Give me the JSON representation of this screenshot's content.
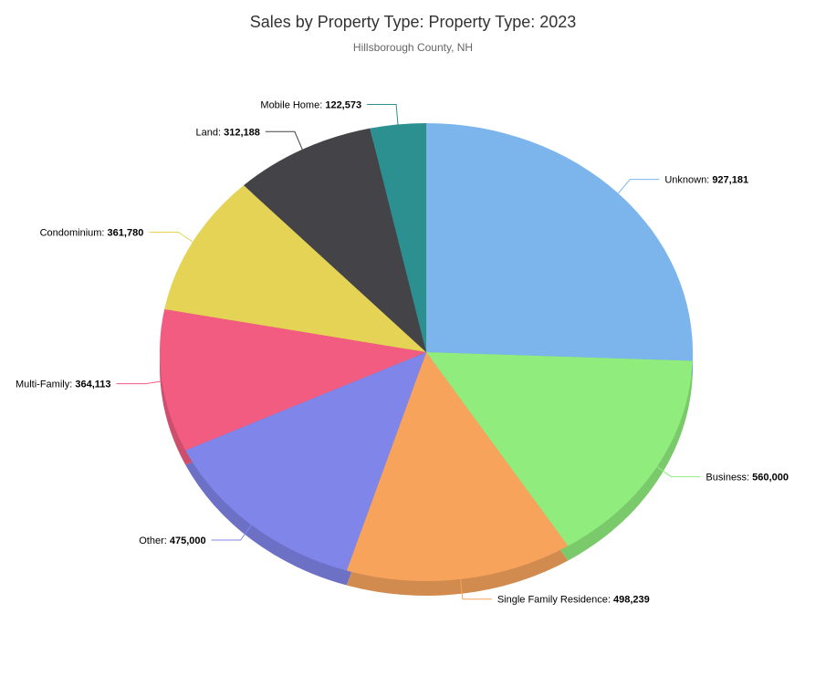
{
  "chart_data": {
    "type": "pie",
    "title": "Sales by Property Type: Property Type: 2023",
    "subtitle": "Hillsborough County, NH",
    "slices": [
      {
        "name": "Unknown",
        "value": 927181,
        "value_label": "927,181",
        "color": "#7cb5ec"
      },
      {
        "name": "Business",
        "value": 560000,
        "value_label": "560,000",
        "color": "#90ed7d"
      },
      {
        "name": "Single Family Residence",
        "value": 498239,
        "value_label": "498,239",
        "color": "#f7a35c"
      },
      {
        "name": "Other",
        "value": 475000,
        "value_label": "475,000",
        "color": "#8085e9"
      },
      {
        "name": "Multi-Family",
        "value": 364113,
        "value_label": "364,113",
        "color": "#f15c80"
      },
      {
        "name": "Condominium",
        "value": 361780,
        "value_label": "361,780",
        "color": "#e4d354"
      },
      {
        "name": "Land",
        "value": 312188,
        "value_label": "312,188",
        "color": "#434348"
      },
      {
        "name": "Mobile Home",
        "value": 122573,
        "value_label": "122,573",
        "color": "#2b908f"
      }
    ]
  }
}
